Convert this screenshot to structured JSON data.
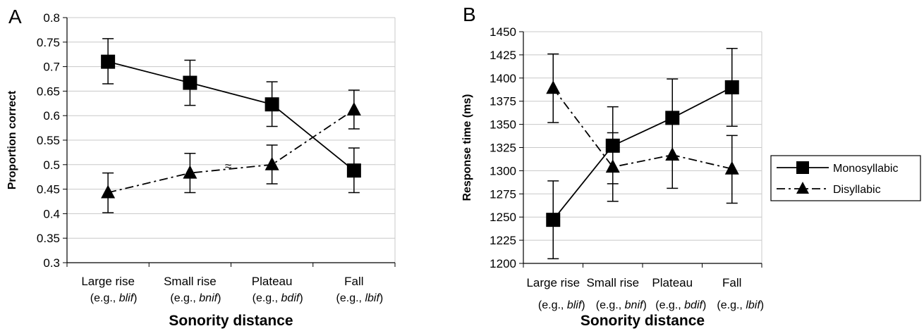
{
  "chart_data": [
    {
      "type": "line",
      "panel_label": "A",
      "xlabel": "Sonority distance",
      "ylabel": "Proportion correct",
      "ylim": [
        0.3,
        0.8
      ],
      "yticks": [
        "0.3",
        "0.35",
        "0.4",
        "0.45",
        "0.5",
        "0.55",
        "0.6",
        "0.65",
        "0.7",
        "0.75",
        "0.8"
      ],
      "categories": [
        {
          "name": "Large rise",
          "example_prefix": "(e.g., ",
          "example_word": "blif",
          "example_suffix": ")"
        },
        {
          "name": "Small rise",
          "example_prefix": "(e.g., ",
          "example_word": "bnif",
          "example_suffix": ")"
        },
        {
          "name": "Plateau",
          "example_prefix": "(e.g., ",
          "example_word": "bdif",
          "example_suffix": ")"
        },
        {
          "name": "Fall",
          "example_prefix": "(e.g., ",
          "example_word": "lbif",
          "example_suffix": ")"
        }
      ],
      "grid": true,
      "series": [
        {
          "name": "Monosyllabic",
          "marker": "square",
          "line": "solid",
          "values": [
            0.71,
            0.667,
            0.623,
            0.488
          ],
          "err_low": [
            0.665,
            0.621,
            0.578,
            0.443
          ],
          "err_high": [
            0.757,
            0.713,
            0.669,
            0.534
          ]
        },
        {
          "name": "Disyllabic",
          "marker": "triangle",
          "line": "dash-dot",
          "values": [
            0.443,
            0.483,
            0.5,
            0.612
          ],
          "err_low": [
            0.402,
            0.443,
            0.461,
            0.573
          ],
          "err_high": [
            0.483,
            0.523,
            0.54,
            0.652
          ]
        }
      ],
      "annotation": "≈"
    },
    {
      "type": "line",
      "panel_label": "B",
      "xlabel": "Sonority distance",
      "ylabel": "Response time (ms)",
      "ylim": [
        1200,
        1450
      ],
      "yticks": [
        "1200",
        "1225",
        "1250",
        "1275",
        "1300",
        "1325",
        "1350",
        "1375",
        "1400",
        "1425",
        "1450"
      ],
      "categories": [
        {
          "name": "Large rise",
          "example_prefix": "(e.g., ",
          "example_word": "blif",
          "example_suffix": ")"
        },
        {
          "name": "Small rise",
          "example_prefix": "(e.g., ",
          "example_word": "bnif",
          "example_suffix": ")"
        },
        {
          "name": "Plateau",
          "example_prefix": "(e.g., ",
          "example_word": "bdif",
          "example_suffix": ")"
        },
        {
          "name": "Fall",
          "example_prefix": "(e.g., ",
          "example_word": "lbif",
          "example_suffix": ")"
        }
      ],
      "grid": true,
      "legend": "right",
      "series": [
        {
          "name": "Monosyllabic",
          "marker": "square",
          "line": "solid",
          "values": [
            1247,
            1327,
            1357,
            1390
          ],
          "err_low": [
            1205,
            1286,
            1316,
            1348
          ],
          "err_high": [
            1289,
            1369,
            1399,
            1432
          ]
        },
        {
          "name": "Disyllabic",
          "marker": "triangle",
          "line": "dash-dot",
          "values": [
            1389,
            1304,
            1317,
            1302
          ],
          "err_low": [
            1352,
            1267,
            1281,
            1265
          ],
          "err_high": [
            1426,
            1341,
            1354,
            1338
          ]
        }
      ]
    }
  ]
}
